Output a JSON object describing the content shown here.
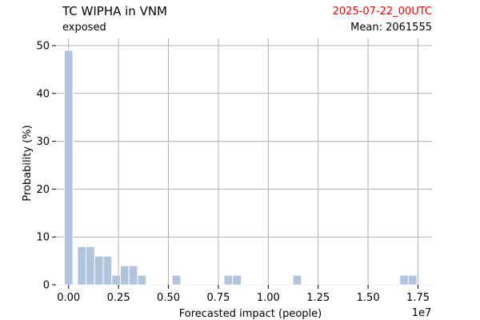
{
  "header": {
    "title": "TC WIPHA in VNM",
    "subtitle": "exposed",
    "date": "2025-07-22_00UTC",
    "mean": "Mean: 2061555",
    "date_color": "#ff0000"
  },
  "chart_data": {
    "type": "bar",
    "xlabel": "Forecasted impact (people)",
    "ylabel": "Probability (%)",
    "x_scale_label": "1e7",
    "xlim": [
      -0.063,
      1.82
    ],
    "ylim": [
      0,
      51.5
    ],
    "x_ticks": [
      0,
      0.25,
      0.5,
      0.75,
      1.0,
      1.25,
      1.5,
      1.75
    ],
    "x_tick_labels": [
      "0.00",
      "0.25",
      "0.50",
      "0.75",
      "1.00",
      "1.25",
      "1.50",
      "1.75"
    ],
    "y_ticks": [
      0,
      10,
      20,
      30,
      40,
      50
    ],
    "y_tick_labels": [
      "0",
      "10",
      "20",
      "30",
      "40",
      "50"
    ],
    "grid": true,
    "bar_color": "#b0c4de",
    "bar_width": 0.043,
    "bars": [
      {
        "x": 0.0,
        "value": 49
      },
      {
        "x": 0.066,
        "value": 8
      },
      {
        "x": 0.109,
        "value": 8
      },
      {
        "x": 0.152,
        "value": 6
      },
      {
        "x": 0.195,
        "value": 6
      },
      {
        "x": 0.238,
        "value": 2
      },
      {
        "x": 0.281,
        "value": 4
      },
      {
        "x": 0.324,
        "value": 4
      },
      {
        "x": 0.367,
        "value": 2
      },
      {
        "x": 0.54,
        "value": 2
      },
      {
        "x": 0.8,
        "value": 2
      },
      {
        "x": 0.843,
        "value": 2
      },
      {
        "x": 1.145,
        "value": 2
      },
      {
        "x": 1.68,
        "value": 2
      },
      {
        "x": 1.723,
        "value": 2
      }
    ]
  }
}
